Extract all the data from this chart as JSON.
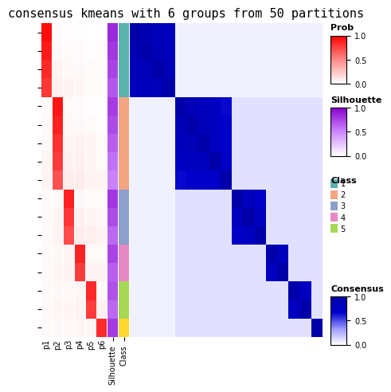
{
  "title": "consensus kmeans with 6 groups from 50 partitions",
  "n_groups": 6,
  "n_samples": 17,
  "group_sizes": [
    4,
    5,
    3,
    2,
    2,
    1
  ],
  "prob_data": [
    [
      0.95,
      0.02,
      0.01,
      0.01,
      0.0,
      0.01
    ],
    [
      0.9,
      0.03,
      0.02,
      0.02,
      0.01,
      0.02
    ],
    [
      0.85,
      0.05,
      0.03,
      0.03,
      0.02,
      0.02
    ],
    [
      0.8,
      0.07,
      0.05,
      0.04,
      0.02,
      0.02
    ],
    [
      0.02,
      0.92,
      0.02,
      0.02,
      0.01,
      0.01
    ],
    [
      0.03,
      0.88,
      0.03,
      0.03,
      0.02,
      0.01
    ],
    [
      0.03,
      0.82,
      0.04,
      0.05,
      0.04,
      0.02
    ],
    [
      0.04,
      0.78,
      0.06,
      0.06,
      0.04,
      0.02
    ],
    [
      0.05,
      0.7,
      0.08,
      0.08,
      0.05,
      0.04
    ],
    [
      0.02,
      0.03,
      0.88,
      0.03,
      0.02,
      0.02
    ],
    [
      0.03,
      0.04,
      0.8,
      0.06,
      0.04,
      0.03
    ],
    [
      0.03,
      0.05,
      0.72,
      0.08,
      0.07,
      0.05
    ],
    [
      0.02,
      0.03,
      0.04,
      0.87,
      0.02,
      0.02
    ],
    [
      0.03,
      0.04,
      0.05,
      0.78,
      0.05,
      0.05
    ],
    [
      0.02,
      0.03,
      0.03,
      0.04,
      0.85,
      0.03
    ],
    [
      0.03,
      0.04,
      0.04,
      0.05,
      0.78,
      0.06
    ],
    [
      0.02,
      0.03,
      0.03,
      0.04,
      0.04,
      0.84
    ]
  ],
  "silhouette_data": [
    0.85,
    0.8,
    0.75,
    0.68,
    0.78,
    0.72,
    0.65,
    0.58,
    0.52,
    0.8,
    0.72,
    0.62,
    0.75,
    0.65,
    0.7,
    0.62,
    0.78
  ],
  "class_data": [
    1,
    1,
    1,
    1,
    2,
    2,
    2,
    2,
    2,
    3,
    3,
    3,
    4,
    4,
    5,
    5,
    6
  ],
  "class_colors": {
    "1": "#5ab4ac",
    "2": "#f4a582",
    "3": "#8da0cb",
    "4": "#e78ac3",
    "5": "#a6d854",
    "6": "#ffd92f"
  },
  "consensus_matrix": [
    [
      1.0,
      0.9,
      0.85,
      0.8,
      0.05,
      0.05,
      0.05,
      0.05,
      0.05,
      0.05,
      0.05,
      0.05,
      0.05,
      0.05,
      0.05,
      0.05,
      0.05
    ],
    [
      0.9,
      1.0,
      0.88,
      0.82,
      0.05,
      0.05,
      0.05,
      0.05,
      0.05,
      0.05,
      0.05,
      0.05,
      0.05,
      0.05,
      0.05,
      0.05,
      0.05
    ],
    [
      0.85,
      0.88,
      1.0,
      0.85,
      0.05,
      0.05,
      0.05,
      0.05,
      0.05,
      0.05,
      0.05,
      0.05,
      0.05,
      0.05,
      0.05,
      0.05,
      0.05
    ],
    [
      0.8,
      0.82,
      0.85,
      1.0,
      0.05,
      0.05,
      0.05,
      0.05,
      0.05,
      0.05,
      0.05,
      0.05,
      0.05,
      0.05,
      0.05,
      0.05,
      0.05
    ],
    [
      0.05,
      0.05,
      0.05,
      0.05,
      1.0,
      0.88,
      0.82,
      0.75,
      0.65,
      0.1,
      0.1,
      0.1,
      0.1,
      0.1,
      0.1,
      0.1,
      0.1
    ],
    [
      0.05,
      0.05,
      0.05,
      0.05,
      0.88,
      1.0,
      0.85,
      0.78,
      0.68,
      0.1,
      0.1,
      0.1,
      0.1,
      0.1,
      0.1,
      0.1,
      0.1
    ],
    [
      0.05,
      0.05,
      0.05,
      0.05,
      0.82,
      0.85,
      1.0,
      0.8,
      0.7,
      0.1,
      0.1,
      0.1,
      0.1,
      0.1,
      0.1,
      0.1,
      0.1
    ],
    [
      0.05,
      0.05,
      0.05,
      0.05,
      0.75,
      0.78,
      0.8,
      1.0,
      0.72,
      0.1,
      0.1,
      0.1,
      0.1,
      0.1,
      0.1,
      0.1,
      0.1
    ],
    [
      0.05,
      0.05,
      0.05,
      0.05,
      0.65,
      0.68,
      0.7,
      0.72,
      1.0,
      0.1,
      0.1,
      0.1,
      0.1,
      0.1,
      0.1,
      0.1,
      0.1
    ],
    [
      0.05,
      0.05,
      0.05,
      0.05,
      0.1,
      0.1,
      0.1,
      0.1,
      0.1,
      1.0,
      0.82,
      0.72,
      0.1,
      0.1,
      0.1,
      0.1,
      0.1
    ],
    [
      0.05,
      0.05,
      0.05,
      0.05,
      0.1,
      0.1,
      0.1,
      0.1,
      0.1,
      0.82,
      1.0,
      0.78,
      0.1,
      0.1,
      0.1,
      0.1,
      0.1
    ],
    [
      0.05,
      0.05,
      0.05,
      0.05,
      0.1,
      0.1,
      0.1,
      0.1,
      0.1,
      0.72,
      0.78,
      1.0,
      0.1,
      0.1,
      0.1,
      0.1,
      0.1
    ],
    [
      0.05,
      0.05,
      0.05,
      0.05,
      0.1,
      0.1,
      0.1,
      0.1,
      0.1,
      0.1,
      0.1,
      0.1,
      1.0,
      0.8,
      0.1,
      0.1,
      0.1
    ],
    [
      0.05,
      0.05,
      0.05,
      0.05,
      0.1,
      0.1,
      0.1,
      0.1,
      0.1,
      0.1,
      0.1,
      0.1,
      0.8,
      1.0,
      0.1,
      0.1,
      0.1
    ],
    [
      0.05,
      0.05,
      0.05,
      0.05,
      0.1,
      0.1,
      0.1,
      0.1,
      0.1,
      0.1,
      0.1,
      0.1,
      0.1,
      0.1,
      1.0,
      0.78,
      0.1
    ],
    [
      0.05,
      0.05,
      0.05,
      0.05,
      0.1,
      0.1,
      0.1,
      0.1,
      0.1,
      0.1,
      0.1,
      0.1,
      0.1,
      0.1,
      0.78,
      1.0,
      0.1
    ],
    [
      0.05,
      0.05,
      0.05,
      0.05,
      0.1,
      0.1,
      0.1,
      0.1,
      0.1,
      0.1,
      0.1,
      0.1,
      0.1,
      0.1,
      0.1,
      0.1,
      1.0
    ]
  ],
  "tick_labels": [
    "p1",
    "p2",
    "p3",
    "p4",
    "p5",
    "p6"
  ],
  "row_labels": [
    "p1",
    "p2",
    "p3",
    "p4",
    "p5",
    "p6",
    "Silhouette",
    "Class"
  ],
  "background_color": "#ffffff",
  "title_fontsize": 11
}
